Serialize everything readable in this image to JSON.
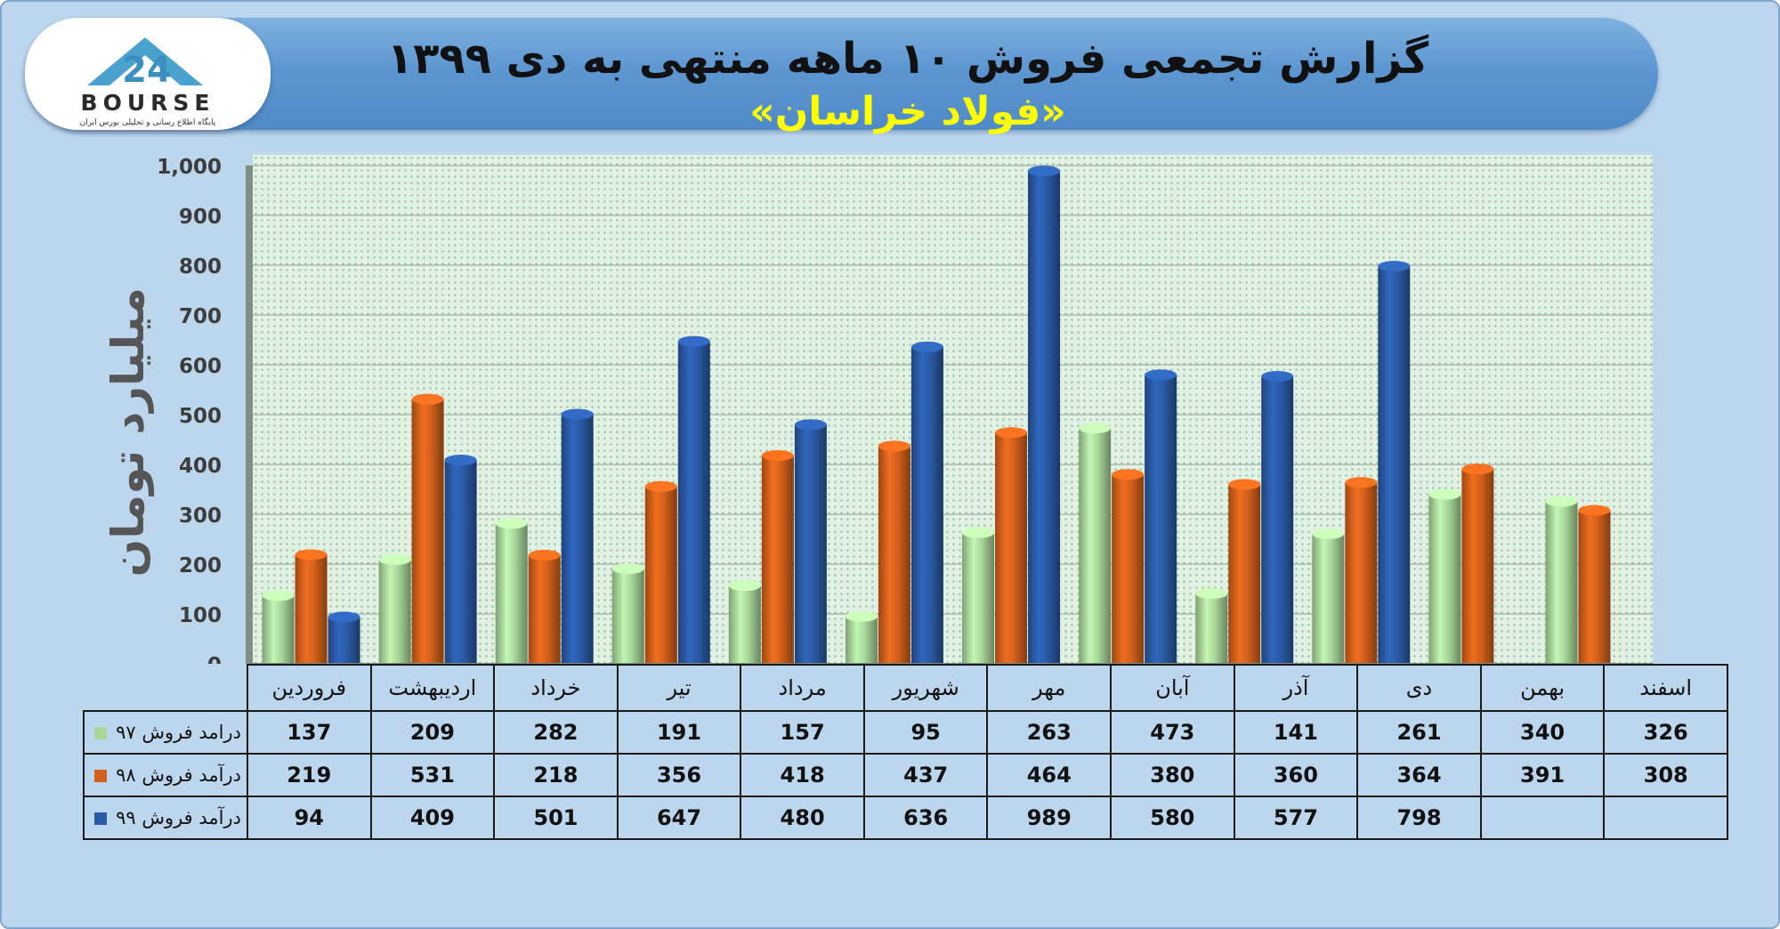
{
  "header": {
    "title_line1": "گزارش تجمعی فروش ۱۰ ماهه منتهی به دی ۱۳۹۹",
    "title_line2": "«فولاد خراسان»"
  },
  "logo": {
    "brand": "BOURSE",
    "number": "24",
    "tagline": "پایگاه اطلاع رسانی و تحلیلی بورس ایران"
  },
  "colors": {
    "series_97": "#a9d79b",
    "series_98": "#d2601b",
    "series_99": "#2a5aa5",
    "header": "#5d97d1",
    "title_highlight": "#ffff00"
  },
  "chart_data": {
    "type": "bar",
    "title": "گزارش تجمعی فروش ۱۰ ماهه منتهی به دی ۱۳۹۹",
    "subtitle": "«فولاد خراسان»",
    "ylabel": "میلیارد تومان",
    "xlabel": "",
    "ylim": [
      0,
      1000
    ],
    "yticks": [
      "0",
      "100",
      "200",
      "300",
      "400",
      "500",
      "600",
      "700",
      "800",
      "900",
      "1,000"
    ],
    "grid": true,
    "legend": "table-left",
    "categories": [
      "فروردین",
      "اردیبهشت",
      "خرداد",
      "تیر",
      "مرداد",
      "شهریور",
      "مهر",
      "آبان",
      "آذر",
      "دی",
      "بهمن",
      "اسفند"
    ],
    "series": [
      {
        "name": "درامد فروش ۹۷",
        "color": "#a9d79b",
        "values": [
          137,
          209,
          282,
          191,
          157,
          95,
          263,
          473,
          141,
          261,
          340,
          326
        ]
      },
      {
        "name": "درآمد فروش ۹۸",
        "color": "#d2601b",
        "values": [
          219,
          531,
          218,
          356,
          418,
          437,
          464,
          380,
          360,
          364,
          391,
          308
        ]
      },
      {
        "name": "درآمد فروش ۹۹",
        "color": "#2a5aa5",
        "values": [
          94,
          409,
          501,
          647,
          480,
          636,
          989,
          580,
          577,
          798,
          null,
          null
        ]
      }
    ]
  }
}
